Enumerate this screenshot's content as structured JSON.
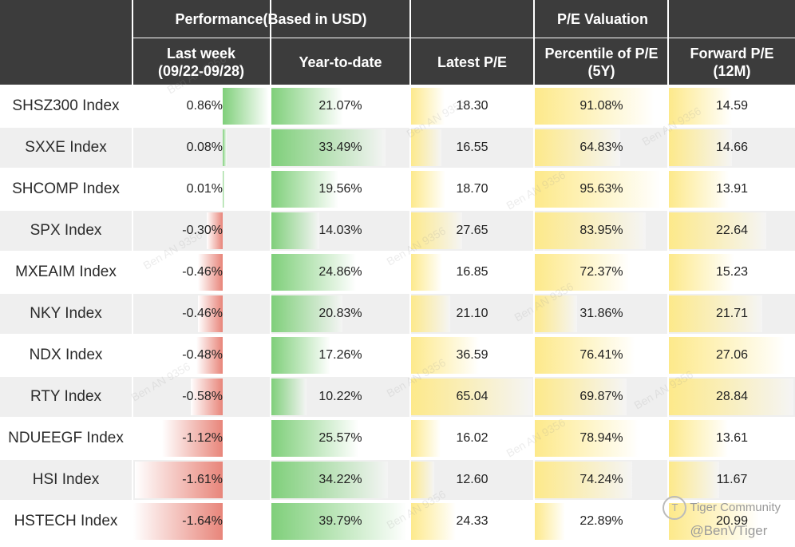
{
  "header": {
    "performance": "Performance(Based in USD)",
    "valuation": "P/E Valuation",
    "last_week_line1": "Last week",
    "last_week_line2": "(09/22-09/28)",
    "ytd": "Year-to-date",
    "latest_pe": "Latest P/E",
    "percentile_line1": "Percentile of P/E",
    "percentile_line2": "(5Y)",
    "forward_line1": "Forward P/E",
    "forward_line2": "(12M)"
  },
  "colors": {
    "header_bg": "#3c3c3c",
    "negative_bar": "#e8857a",
    "positive_bar": "#7fcf7a",
    "pe_bar": "#fde98a"
  },
  "chart_data": {
    "type": "table",
    "title": "Performance(Based in USD) / P/E Valuation",
    "columns": [
      "Last week (09/22-09/28)",
      "Year-to-date",
      "Latest P/E",
      "Percentile of P/E (5Y)",
      "Forward P/E (12M)"
    ],
    "rows": [
      {
        "name": "SHSZ300 Index",
        "last_week": 0.86,
        "last_week_label": "0.86%",
        "ytd": 21.07,
        "ytd_label": "21.07%",
        "latest_pe": 18.3,
        "latest_pe_label": "18.30",
        "percentile": 91.08,
        "percentile_label": "91.08%",
        "forward_pe": 14.59,
        "forward_pe_label": "14.59"
      },
      {
        "name": "SXXE Index",
        "last_week": 0.08,
        "last_week_label": "0.08%",
        "ytd": 33.49,
        "ytd_label": "33.49%",
        "latest_pe": 16.55,
        "latest_pe_label": "16.55",
        "percentile": 64.83,
        "percentile_label": "64.83%",
        "forward_pe": 14.66,
        "forward_pe_label": "14.66"
      },
      {
        "name": "SHCOMP Index",
        "last_week": 0.01,
        "last_week_label": "0.01%",
        "ytd": 19.56,
        "ytd_label": "19.56%",
        "latest_pe": 18.7,
        "latest_pe_label": "18.70",
        "percentile": 95.63,
        "percentile_label": "95.63%",
        "forward_pe": 13.91,
        "forward_pe_label": "13.91"
      },
      {
        "name": "SPX Index",
        "last_week": -0.3,
        "last_week_label": "-0.30%",
        "ytd": 14.03,
        "ytd_label": "14.03%",
        "latest_pe": 27.65,
        "latest_pe_label": "27.65",
        "percentile": 83.95,
        "percentile_label": "83.95%",
        "forward_pe": 22.64,
        "forward_pe_label": "22.64"
      },
      {
        "name": "MXEAIM Index",
        "last_week": -0.46,
        "last_week_label": "-0.46%",
        "ytd": 24.86,
        "ytd_label": "24.86%",
        "latest_pe": 16.85,
        "latest_pe_label": "16.85",
        "percentile": 72.37,
        "percentile_label": "72.37%",
        "forward_pe": 15.23,
        "forward_pe_label": "15.23"
      },
      {
        "name": "NKY Index",
        "last_week": -0.46,
        "last_week_label": "-0.46%",
        "ytd": 20.83,
        "ytd_label": "20.83%",
        "latest_pe": 21.1,
        "latest_pe_label": "21.10",
        "percentile": 31.86,
        "percentile_label": "31.86%",
        "forward_pe": 21.71,
        "forward_pe_label": "21.71"
      },
      {
        "name": "NDX Index",
        "last_week": -0.48,
        "last_week_label": "-0.48%",
        "ytd": 17.26,
        "ytd_label": "17.26%",
        "latest_pe": 36.59,
        "latest_pe_label": "36.59",
        "percentile": 76.41,
        "percentile_label": "76.41%",
        "forward_pe": 27.06,
        "forward_pe_label": "27.06"
      },
      {
        "name": "RTY Index",
        "last_week": -0.58,
        "last_week_label": "-0.58%",
        "ytd": 10.22,
        "ytd_label": "10.22%",
        "latest_pe": 65.04,
        "latest_pe_label": "65.04",
        "percentile": 69.87,
        "percentile_label": "69.87%",
        "forward_pe": 28.84,
        "forward_pe_label": "28.84"
      },
      {
        "name": "NDUEEGF Index",
        "last_week": -1.12,
        "last_week_label": "-1.12%",
        "ytd": 25.57,
        "ytd_label": "25.57%",
        "latest_pe": 16.02,
        "latest_pe_label": "16.02",
        "percentile": 78.94,
        "percentile_label": "78.94%",
        "forward_pe": 13.61,
        "forward_pe_label": "13.61"
      },
      {
        "name": "HSI Index",
        "last_week": -1.61,
        "last_week_label": "-1.61%",
        "ytd": 34.22,
        "ytd_label": "34.22%",
        "latest_pe": 12.6,
        "latest_pe_label": "12.60",
        "percentile": 74.24,
        "percentile_label": "74.24%",
        "forward_pe": 11.67,
        "forward_pe_label": "11.67"
      },
      {
        "name": "HSTECH Index",
        "last_week": -1.64,
        "last_week_label": "-1.64%",
        "ytd": 39.79,
        "ytd_label": "39.79%",
        "latest_pe": 24.33,
        "latest_pe_label": "24.33",
        "percentile": 22.89,
        "percentile_label": "22.89%",
        "forward_pe": 20.99,
        "forward_pe_label": "20.99"
      }
    ]
  },
  "watermarks": [
    "Ben AN 9356"
  ],
  "branding": {
    "community": "Tiger Community",
    "handle": "@BenVTiger"
  }
}
